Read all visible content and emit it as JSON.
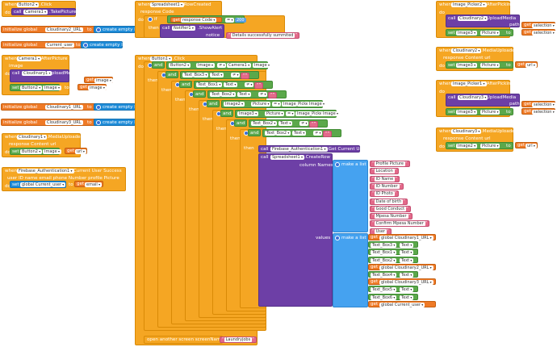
{
  "colors": {
    "event": "#f5a623",
    "component": "#6d3fa6",
    "property": "#5ba84b",
    "variable": "#1d8bd8",
    "text": "#e36a8a",
    "get": "#ef7a26",
    "list": "#45a2f0"
  },
  "b_btn2": {
    "when": "when",
    "comp": "Button2",
    "event": ".Click",
    "do": "do",
    "call": "call",
    "comp2": "Camera1",
    "method": ".TakePicture"
  },
  "g1": {
    "kw": "initialize global",
    "name": "Cloudinary2_URL",
    "to": "to",
    "val": "create empty list"
  },
  "g2": {
    "kw": "initialize global",
    "name": "Current_user",
    "to": "to",
    "val": "create empty list"
  },
  "b_cam": {
    "when": "when",
    "comp": "Camera1",
    "event": ".AfterPicture",
    "param": "image",
    "do": "do",
    "call": "call",
    "comp2": "Cloudinary1",
    "method": ".UploadMedia",
    "path": "path",
    "get": "get",
    "getval": "image",
    "set": "set",
    "btn": "Button2",
    "prop": "Image",
    "to": "to",
    "get2": "get",
    "getval2": "image"
  },
  "g3": {
    "kw": "initialize global",
    "name": "Cloudinary1_URL",
    "to": "to",
    "val": "create empty list"
  },
  "g4": {
    "kw": "initialize global",
    "name": "Cloudinary3_URL",
    "to": "to",
    "val": "create empty list"
  },
  "b_cl1": {
    "when": "when",
    "comp": "Cloudinary1",
    "event": ".MediaUploaded",
    "params": "response Content   url",
    "do": "do",
    "set": "set",
    "btn": "Button2",
    "prop": "Image",
    "to": "to",
    "get": "get",
    "getval": "url"
  },
  "b_fb": {
    "when": "when",
    "comp": "Firebase_Authentication1",
    "event": ".Current User Success",
    "params": "user ID   name   email   phone Number   profile Picture",
    "do": "do",
    "set": "set",
    "var": "global Current_user",
    "to": "to",
    "get": "get",
    "getval": "email"
  },
  "b_ss": {
    "when": "when",
    "comp": "Spreadsheet1",
    "event": ".RowCreated",
    "param": "response Code",
    "do": "do",
    "if": "if",
    "get": "get",
    "getval": "response Code",
    "op": "=",
    "num": "200",
    "then": "then",
    "call": "call",
    "comp2": "Notifier1",
    "method": ".ShowAlert",
    "notice": "notice",
    "msg": "Details successfully summited"
  },
  "b_main": {
    "when": "when",
    "comp": "Button1",
    "event": ".Click",
    "do": "do",
    "and": "and",
    "then": "then",
    "conds": [
      {
        "l": "Button2",
        "lp": "Image",
        "op": "≠",
        "r": "Camera1",
        "rp": "Image"
      },
      {
        "l": "Text_Box3",
        "lp": "Text",
        "op": "≠",
        "r": ""
      },
      {
        "l": "Text_Box1",
        "lp": "Text",
        "op": "≠",
        "r": ""
      },
      {
        "l": "Text_Box2",
        "lp": "Text",
        "op": "≠",
        "r": ""
      },
      {
        "l": "Image2",
        "lp": "Picture",
        "op": "=",
        "r": "Image_Picker2",
        "rp": "Image"
      },
      {
        "l": "Image3",
        "lp": "Picture",
        "op": "=",
        "r": "Image_Picker2",
        "rp": "Image"
      },
      {
        "l": "Text_Box2",
        "lp": "Text",
        "op": "≠",
        "r": ""
      },
      {
        "l": "Text_Box2",
        "lp": "Text",
        "op": "≠",
        "r": ""
      }
    ],
    "call1": "call",
    "fb": "Firebase_Authentication1",
    "m1": ".Get Current User",
    "call2": "call",
    "ss": "Spreadsheet1",
    "m2": ".CreateRow",
    "colnames": "column Names",
    "makelist": "make a list",
    "values": "values",
    "makelist2": "make a list",
    "columns": [
      "Profile Picture",
      "Location",
      "ID Name",
      "ID Number",
      "ID Photo",
      "Date of birth",
      "Good Conduct",
      "Mpesa Number",
      "Confirm Mpesa Number",
      "User"
    ],
    "vals": [
      {
        "type": "get",
        "v": "global Cloudinary1_URL"
      },
      {
        "type": "tb",
        "c": "Text_Box3",
        "p": "Text"
      },
      {
        "type": "tb",
        "c": "Text_Box1",
        "p": "Text"
      },
      {
        "type": "tb",
        "c": "Text_Box2",
        "p": "Text"
      },
      {
        "type": "get",
        "v": "global Cloudinary2_URL"
      },
      {
        "type": "tb",
        "c": "Text_Box4",
        "p": "Text"
      },
      {
        "type": "get",
        "v": "global Cloudinary3_URL"
      },
      {
        "type": "tb",
        "c": "Text_Box5",
        "p": "Text"
      },
      {
        "type": "tb",
        "c": "Text_Box6",
        "p": "Text"
      },
      {
        "type": "get",
        "v": "global Current_user"
      }
    ],
    "open": "open another screen  screenName",
    "screen": "Laundryjobs"
  },
  "b_ip2": {
    "when": "when",
    "comp": "Image_Picker2",
    "event": ".AfterPicking",
    "do": "do",
    "call": "call",
    "comp2": "Cloudinary2",
    "method": ".UploadMedia",
    "path": "path",
    "get": "get",
    "getval": "selection",
    "set": "set",
    "img": "Image3",
    "prop": "Picture",
    "to": "to",
    "get2": "get",
    "getval2": "selection"
  },
  "b_cl2": {
    "when": "when",
    "comp": "Cloudinary2",
    "event": ".MediaUploaded",
    "params": "response Content   url",
    "do": "do",
    "set": "set",
    "img": "Image3",
    "prop": "Picture",
    "to": "to",
    "get": "get",
    "getval": "url"
  },
  "b_ip1": {
    "when": "when",
    "comp": "Image_Picker1",
    "event": ".AfterPicking",
    "do": "do",
    "call": "call",
    "comp2": "Cloudinary3",
    "method": ".UploadMedia",
    "path": "path",
    "get": "get",
    "getval": "selection",
    "set": "set",
    "img": "Image3",
    "prop": "Picture",
    "to": "to",
    "get2": "get",
    "getval2": "selection"
  },
  "b_cl3": {
    "when": "when",
    "comp": "Cloudinary3",
    "event": ".MediaUploaded",
    "params": "response Content   url",
    "do": "do",
    "set": "set",
    "img": "Image2",
    "prop": "Picture",
    "to": "to",
    "get": "get",
    "getval": "url"
  }
}
